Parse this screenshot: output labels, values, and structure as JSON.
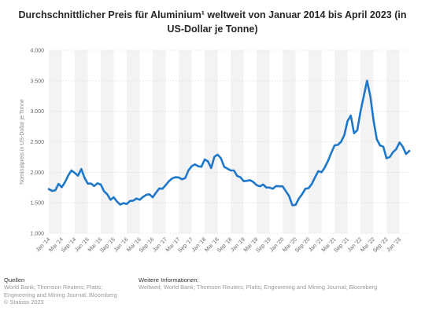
{
  "title": "Durchschnittlicher Preis für Aluminium¹ weltweit von Januar 2014 bis April 2023 (in US-Dollar je Tonne)",
  "footer": {
    "sources_heading": "Quellen",
    "sources_text": "World Bank; Thomson Reuters; Platts; Engineering and Mining Journal; Bloomberg",
    "copyright": "© Statista 2023",
    "info_heading": "Weitere Informationen:",
    "info_text": "Weltweit; World Bank; Thomson Reuters; Platts; Engineering and Mining Journal; Bloomberg"
  },
  "colors": {
    "line": "#1f77c9",
    "band": "#f3f3f3",
    "grid": "#d0d0d0"
  },
  "chart_data": {
    "type": "line",
    "ylabel": "Nominalpreis in US-Dollar je Tonne",
    "ylim": [
      1000,
      4000
    ],
    "yticks": [
      1000,
      1500,
      2000,
      2500,
      3000,
      3500,
      4000
    ],
    "ytick_labels": [
      "1.000",
      "1.500",
      "2.000",
      "2.500",
      "3.000",
      "3.500",
      "4.000"
    ],
    "x_tick_labels": [
      "Jan '14",
      "Mai '14",
      "Sep '14",
      "Jan '15",
      "Mai '15",
      "Sep '15",
      "Jan '16",
      "Mai '16",
      "Sep '16",
      "Jan '17",
      "Mai '17",
      "Sep '17",
      "Jan '18",
      "Mai '18",
      "Sep '18",
      "Jan '19",
      "Mai '19",
      "Sep '19",
      "Jan '20",
      "Mai '20",
      "Sep '20",
      "Jan '21",
      "Mai '21",
      "Sep '21",
      "Jan '22",
      "Mai '22",
      "Sep '22",
      "Jan '23"
    ],
    "grid": true,
    "legend": "none",
    "series": [
      {
        "values": [
          1725,
          1695,
          1705,
          1810,
          1755,
          1840,
          1950,
          2030,
          1990,
          1945,
          2055,
          1910,
          1815,
          1815,
          1775,
          1820,
          1800,
          1690,
          1640,
          1550,
          1590,
          1520,
          1470,
          1495,
          1480,
          1530,
          1535,
          1570,
          1550,
          1595,
          1630,
          1640,
          1590,
          1665,
          1735,
          1730,
          1790,
          1855,
          1900,
          1920,
          1915,
          1885,
          1905,
          2030,
          2100,
          2130,
          2100,
          2090,
          2210,
          2180,
          2070,
          2255,
          2290,
          2230,
          2090,
          2060,
          2030,
          2030,
          1940,
          1920,
          1855,
          1860,
          1870,
          1840,
          1790,
          1770,
          1800,
          1750,
          1750,
          1730,
          1775,
          1770,
          1770,
          1690,
          1610,
          1460,
          1465,
          1570,
          1640,
          1730,
          1740,
          1810,
          1920,
          2020,
          2000,
          2080,
          2190,
          2320,
          2440,
          2450,
          2500,
          2610,
          2840,
          2930,
          2640,
          2690,
          3000,
          3250,
          3500,
          3250,
          2850,
          2540,
          2440,
          2420,
          2230,
          2250,
          2330,
          2380,
          2490,
          2420,
          2300,
          2350
        ]
      }
    ]
  }
}
